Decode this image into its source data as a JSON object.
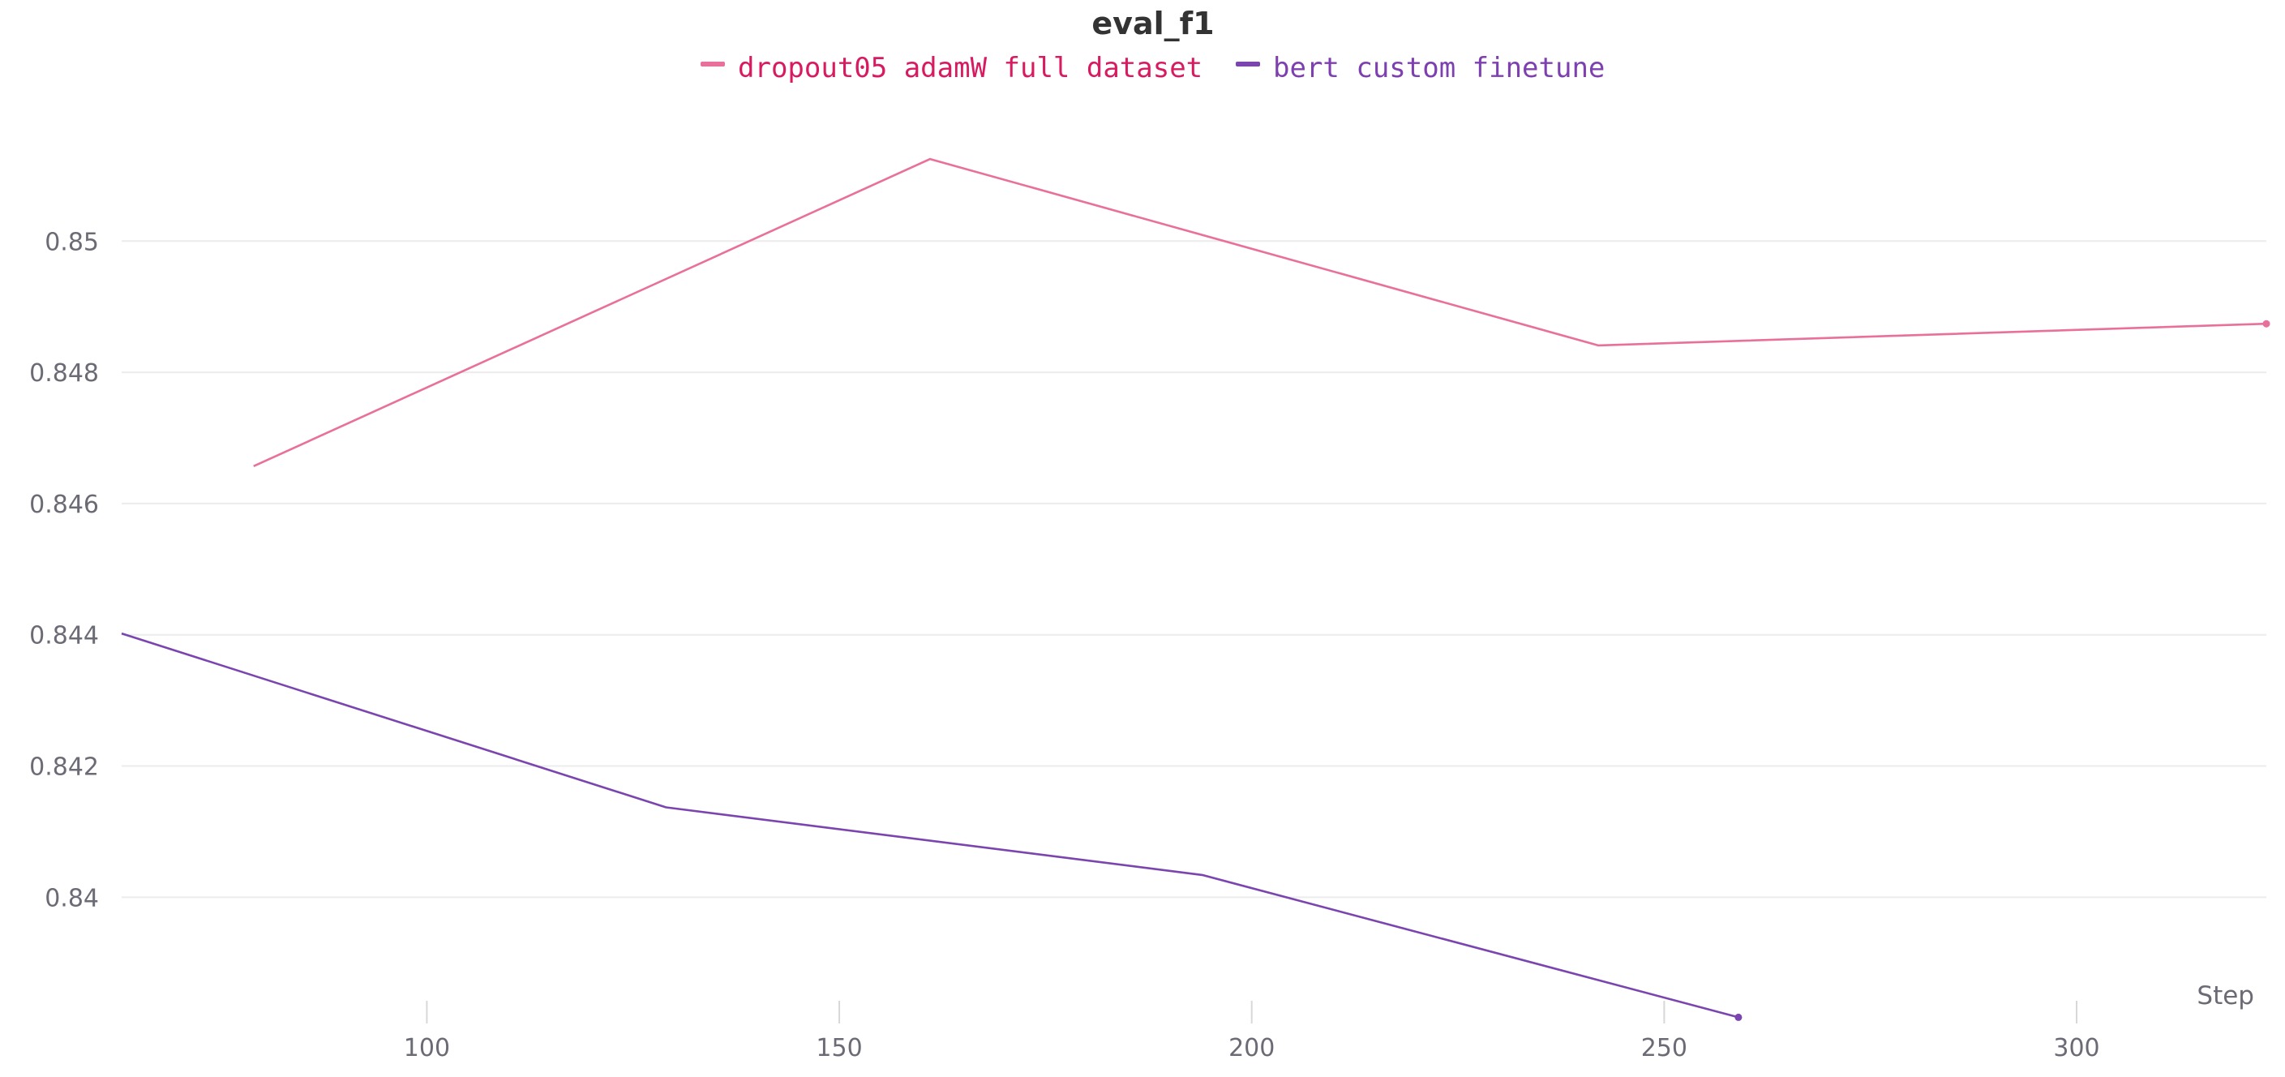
{
  "chart_data": {
    "type": "line",
    "title": "eval_f1",
    "xlabel": "Step",
    "ylabel": "",
    "xlim": [
      63,
      323
    ],
    "ylim": [
      0.8382,
      0.8525
    ],
    "xticks": [
      100,
      150,
      200,
      250,
      300
    ],
    "xtick_labels": [
      "100",
      "150",
      "200",
      "250",
      "300"
    ],
    "yticks": [
      0.84,
      0.842,
      0.844,
      0.846,
      0.848,
      0.85
    ],
    "ytick_labels": [
      "0.84",
      "0.842",
      "0.844",
      "0.846",
      "0.848",
      "0.85"
    ],
    "grid": true,
    "legend_position": "top-center",
    "series": [
      {
        "name": "dropout05 adamW full dataset",
        "color": "#e8709a",
        "label_color": "#d81b60",
        "x": [
          79,
          161,
          242,
          323
        ],
        "y": [
          0.84657,
          0.85125,
          0.84841,
          0.84874
        ]
      },
      {
        "name": "bert custom finetune",
        "color": "#7b45b0",
        "label_color": "#7e3fb0",
        "x": [
          63,
          129,
          194,
          259
        ],
        "y": [
          0.84402,
          0.84137,
          0.84034,
          0.83817
        ]
      }
    ]
  }
}
